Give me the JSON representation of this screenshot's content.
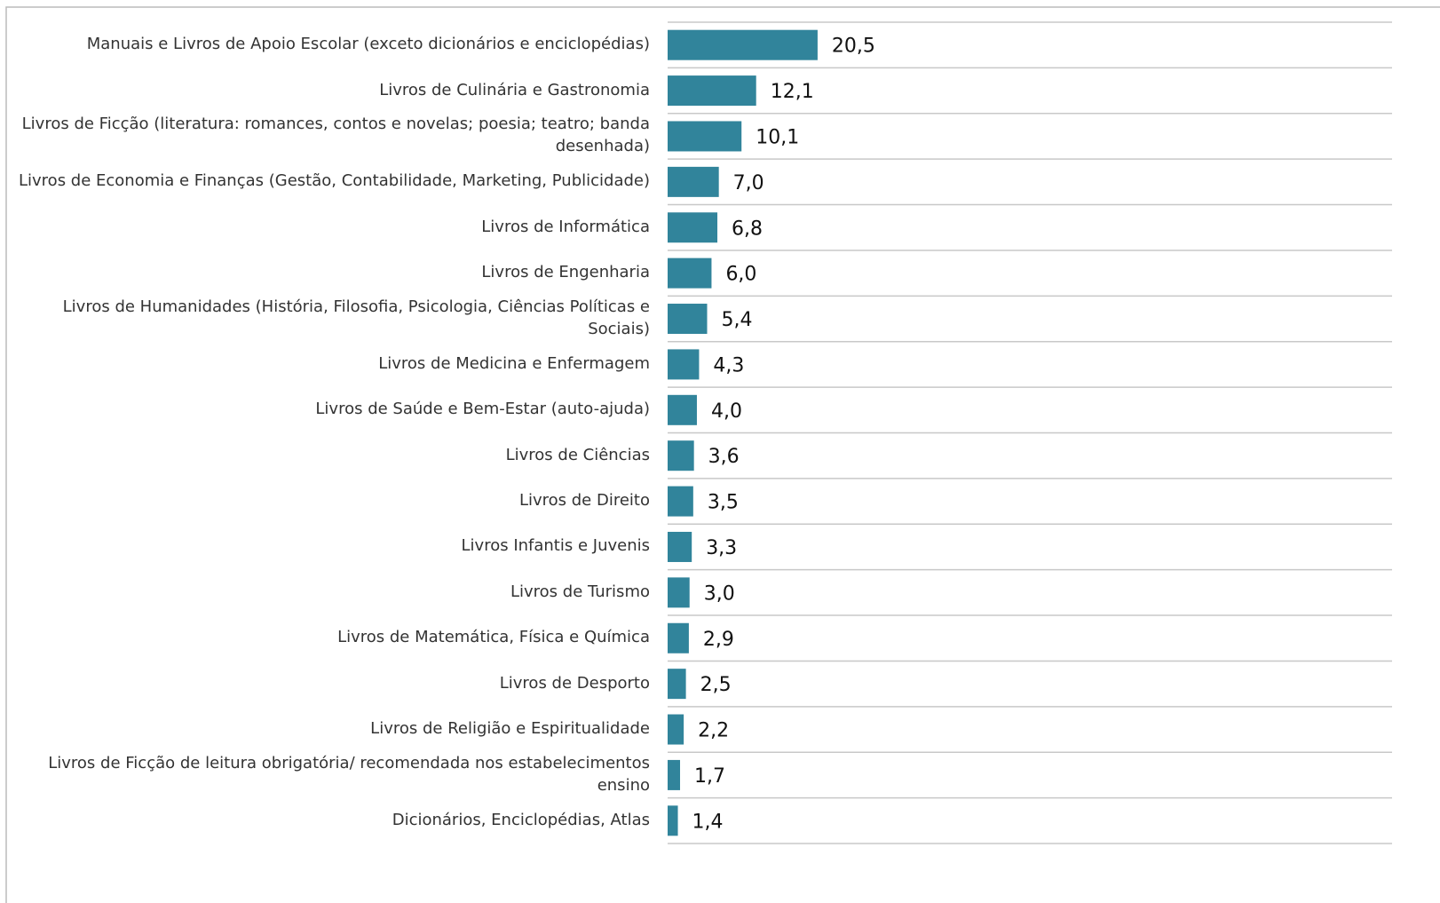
{
  "chart_data": {
    "type": "bar",
    "orientation": "horizontal",
    "color": "#31849b",
    "categories": [
      "Manuais e Livros de Apoio Escolar (exceto dicionários e enciclopédias)",
      "Livros de Culinária e Gastronomia",
      "Livros de Ficção (literatura: romances, contos e novelas; poesia; teatro; banda desenhada)",
      "Livros de Economia e Finanças (Gestão, Contabilidade, Marketing, Publicidade)",
      "Livros de Informática",
      "Livros de Engenharia",
      "Livros de Humanidades (História, Filosofia, Psicologia, Ciências Políticas e Sociais)",
      "Livros de Medicina e Enfermagem",
      "Livros de Saúde e Bem-Estar (auto-ajuda)",
      "Livros de Ciências",
      "Livros de Direito",
      "Livros Infantis e Juvenis",
      "Livros de Turismo",
      "Livros de Matemática, Física e Química",
      "Livros de Desporto",
      "Livros de Religião e Espiritualidade",
      "Livros de Ficção de leitura obrigatória/ recomendada nos estabelecimentos ensino",
      "Dicionários, Enciclopédias, Atlas"
    ],
    "values": [
      20.5,
      12.1,
      10.1,
      7.0,
      6.8,
      6.0,
      5.4,
      4.3,
      4.0,
      3.6,
      3.5,
      3.3,
      3.0,
      2.9,
      2.5,
      2.2,
      1.7,
      1.4
    ],
    "value_labels": [
      "20,5",
      "12,1",
      "10,1",
      "7,0",
      "6,8",
      "6,0",
      "5,4",
      "4,3",
      "4,0",
      "3,6",
      "3,5",
      "3,3",
      "3,0",
      "2,9",
      "2,5",
      "2,2",
      "1,7",
      "1,4"
    ],
    "xlim": [
      0,
      100
    ]
  }
}
